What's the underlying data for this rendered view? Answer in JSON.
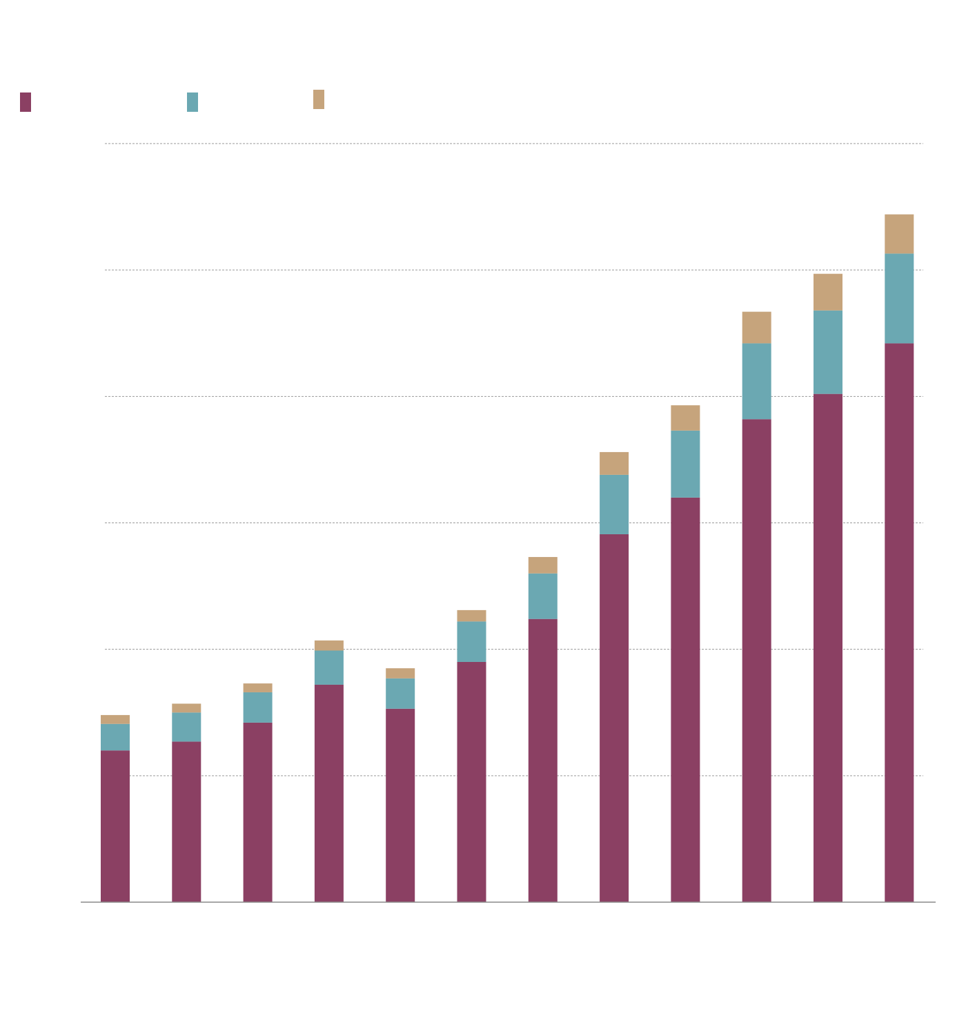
{
  "chart_data": {
    "type": "bar",
    "stacked": true,
    "title": "",
    "xlabel": "",
    "ylabel": "",
    "categories": [
      "",
      "",
      "",
      "",
      "",
      "",
      "",
      "",
      "",
      "",
      "",
      ""
    ],
    "ylim": [
      0,
      6
    ],
    "grid": true,
    "legend": "top-left",
    "series": [
      {
        "name": "",
        "color": "#8b4063",
        "values": [
          1.2,
          1.27,
          1.42,
          1.72,
          1.53,
          1.9,
          2.24,
          2.91,
          3.2,
          3.82,
          4.02,
          4.42
        ]
      },
      {
        "name": "",
        "color": "#6ba8b2",
        "values": [
          0.21,
          0.23,
          0.24,
          0.27,
          0.24,
          0.32,
          0.36,
          0.47,
          0.53,
          0.6,
          0.66,
          0.71
        ]
      },
      {
        "name": "",
        "color": "#c6a47c",
        "values": [
          0.07,
          0.07,
          0.07,
          0.08,
          0.08,
          0.09,
          0.13,
          0.18,
          0.2,
          0.25,
          0.29,
          0.31
        ]
      }
    ]
  }
}
